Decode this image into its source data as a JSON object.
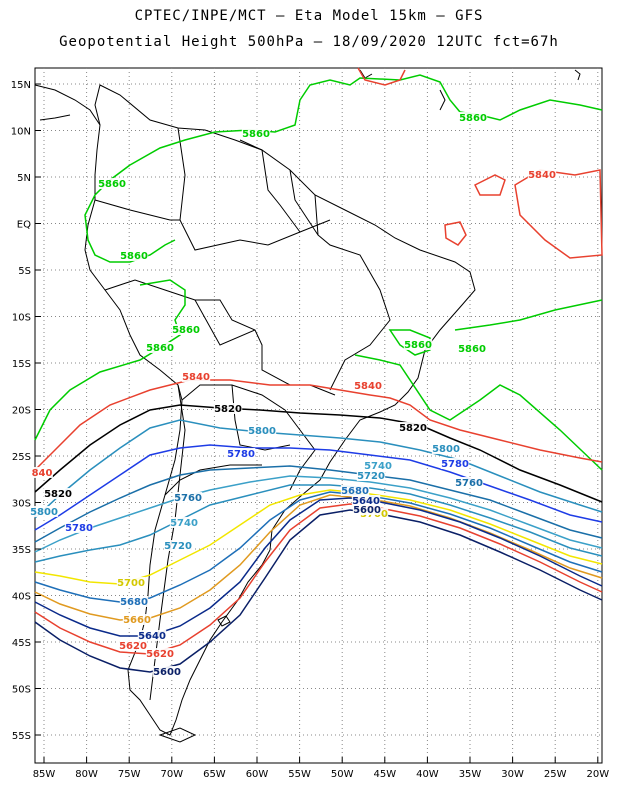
{
  "header": {
    "line1": "CPTEC/INPE/MCT –  Eta Model 15km – GFS",
    "line2": "Geopotential Height 500hPa – 18/09/2020 12UTC fct=67h"
  },
  "axes": {
    "lat_labels": [
      "15N",
      "10N",
      "5N",
      "EQ",
      "5S",
      "10S",
      "15S",
      "20S",
      "25S",
      "30S",
      "35S",
      "40S",
      "45S",
      "50S",
      "55S"
    ],
    "lon_labels": [
      "85W",
      "80W",
      "75W",
      "70W",
      "65W",
      "60W",
      "55W",
      "50W",
      "45W",
      "40W",
      "35W",
      "30W",
      "25W",
      "20W"
    ]
  },
  "contours": [
    {
      "value": 5860,
      "color": "#00cc00"
    },
    {
      "value": 5840,
      "color": "#e8412f"
    },
    {
      "value": 5820,
      "color": "#000000"
    },
    {
      "value": 5800,
      "color": "#2a8fbd"
    },
    {
      "value": 5780,
      "color": "#1e3ce6"
    },
    {
      "value": 5760,
      "color": "#1a6fa8"
    },
    {
      "value": 5740,
      "color": "#3ba0c8"
    },
    {
      "value": 5720,
      "color": "#2a8fbd"
    },
    {
      "value": 5700,
      "color": "#f2e600"
    },
    {
      "value": 5680,
      "color": "#1e6fb8"
    },
    {
      "value": 5660,
      "color": "#e09a20"
    },
    {
      "value": 5640,
      "color": "#0a2a8a"
    },
    {
      "value": 5620,
      "color": "#e8412f"
    },
    {
      "value": 5600,
      "color": "#0a1f66"
    }
  ],
  "contour_labels": [
    {
      "text": "5860",
      "color": "#00cc00"
    },
    {
      "text": "5860",
      "color": "#00cc00"
    },
    {
      "text": "5860",
      "color": "#00cc00"
    },
    {
      "text": "5860",
      "color": "#00cc00"
    },
    {
      "text": "5860",
      "color": "#00cc00"
    },
    {
      "text": "5860",
      "color": "#00cc00"
    },
    {
      "text": "5860",
      "color": "#00cc00"
    },
    {
      "text": "5860",
      "color": "#00cc00"
    },
    {
      "text": "5840",
      "color": "#e8412f"
    },
    {
      "text": "5840",
      "color": "#e8412f"
    },
    {
      "text": "5840",
      "color": "#e8412f"
    },
    {
      "text": "840",
      "color": "#e8412f"
    },
    {
      "text": "5820",
      "color": "#000000"
    },
    {
      "text": "5820",
      "color": "#000000"
    },
    {
      "text": "5820",
      "color": "#000000"
    },
    {
      "text": "5800",
      "color": "#2a8fbd"
    },
    {
      "text": "5800",
      "color": "#2a8fbd"
    },
    {
      "text": "5800",
      "color": "#2a8fbd"
    },
    {
      "text": "5780",
      "color": "#1e3ce6"
    },
    {
      "text": "5780",
      "color": "#1e3ce6"
    },
    {
      "text": "5780",
      "color": "#1e3ce6"
    },
    {
      "text": "5760",
      "color": "#1a6fa8"
    },
    {
      "text": "5760",
      "color": "#1a6fa8"
    },
    {
      "text": "5740",
      "color": "#3ba0c8"
    },
    {
      "text": "5740",
      "color": "#3ba0c8"
    },
    {
      "text": "5720",
      "color": "#2a8fbd"
    },
    {
      "text": "5720",
      "color": "#2a8fbd"
    },
    {
      "text": "5700",
      "color": "#d4c800"
    },
    {
      "text": "5700",
      "color": "#d4c800"
    },
    {
      "text": "5680",
      "color": "#1e6fb8"
    },
    {
      "text": "5680",
      "color": "#1e6fb8"
    },
    {
      "text": "5660",
      "color": "#e09a20"
    },
    {
      "text": "5640",
      "color": "#0a2a8a"
    },
    {
      "text": "5640",
      "color": "#0a2a8a"
    },
    {
      "text": "5620",
      "color": "#e8412f"
    },
    {
      "text": "5620",
      "color": "#e8412f"
    },
    {
      "text": "5600",
      "color": "#0a1f66"
    },
    {
      "text": "5600",
      "color": "#0a1f66"
    }
  ]
}
